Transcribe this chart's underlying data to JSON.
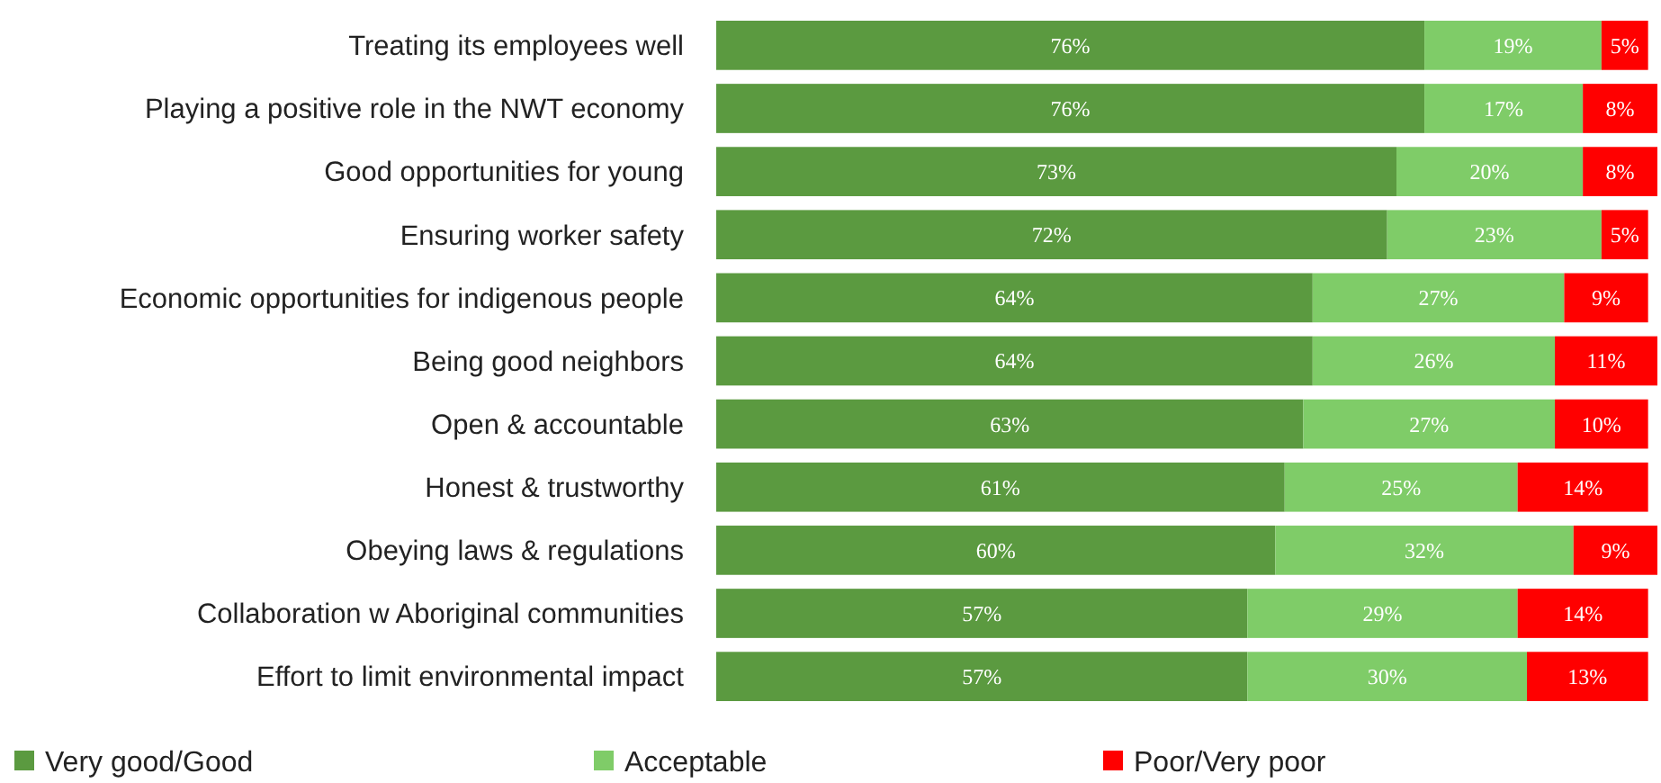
{
  "chart_data": {
    "type": "bar",
    "orientation": "horizontal",
    "stacked": true,
    "legend": "bottom",
    "categories": [
      "Treating its employees well",
      "Playing a positive role in the NWT economy",
      "Good opportunities for young",
      "Ensuring worker safety",
      "Economic opportunities for indigenous people",
      "Being good neighbors",
      "Open & accountable",
      "Honest & trustworthy",
      "Obeying laws & regulations",
      "Collaboration w Aboriginal communities",
      "Effort to limit environmental impact"
    ],
    "series": [
      {
        "name": "Very good/Good",
        "color": "#5b9a40",
        "values": [
          76,
          76,
          73,
          72,
          64,
          64,
          63,
          61,
          60,
          57,
          57
        ],
        "value_labels": [
          "76%",
          "76%",
          "73%",
          "72%",
          "64%",
          "64%",
          "63%",
          "61%",
          "60%",
          "57%",
          "57%"
        ]
      },
      {
        "name": "Acceptable",
        "color": "#7fcc68",
        "values": [
          19,
          17,
          20,
          23,
          27,
          26,
          27,
          25,
          32,
          29,
          30
        ],
        "value_labels": [
          "19%",
          "17%",
          "20%",
          "23%",
          "27%",
          "26%",
          "27%",
          "25%",
          "32%",
          "29%",
          "30%"
        ]
      },
      {
        "name": "Poor/Very poor",
        "color": "#ff0000",
        "values": [
          5,
          8,
          8,
          5,
          9,
          11,
          10,
          14,
          9,
          14,
          13
        ],
        "value_labels": [
          "5%",
          "8%",
          "8%",
          "5%",
          "9%",
          "11%",
          "10%",
          "14%",
          "9%",
          "14%",
          "13%"
        ]
      }
    ]
  }
}
